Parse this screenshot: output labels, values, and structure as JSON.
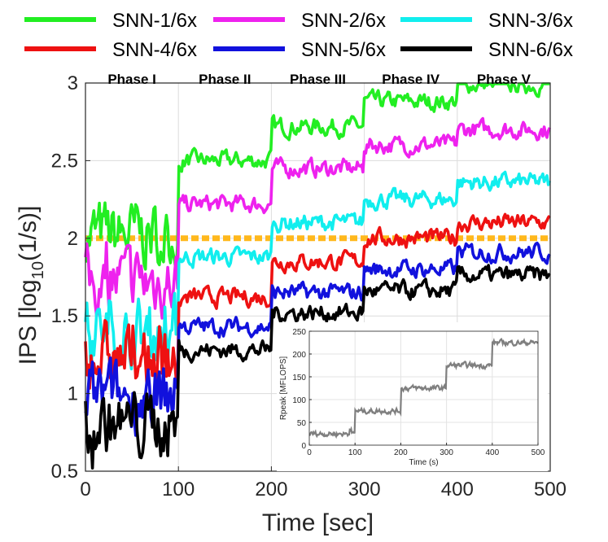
{
  "chart_data": [
    {
      "type": "line",
      "title": "",
      "xlabel": "Time [sec]",
      "ylabel": "IPS [log10(1/s)]",
      "ylabel_parts": {
        "prefix": "IPS [log",
        "sub": "10",
        "suffix": "(1/s)]"
      },
      "xlim": [
        0,
        500
      ],
      "ylim": [
        0.5,
        3.0
      ],
      "xticks": [
        0,
        100,
        200,
        300,
        400,
        500
      ],
      "yticks": [
        0.5,
        1,
        1.5,
        2,
        2.5,
        3
      ],
      "xtick_labels": [
        "0",
        "100",
        "200",
        "300",
        "400",
        "500"
      ],
      "ytick_labels": [
        "0.5",
        "1",
        "1.5",
        "2",
        "2.5",
        "3"
      ],
      "grid": true,
      "legend_position": "top-outside",
      "phase_labels": [
        "Phase I",
        "Phase II",
        "Phase III",
        "Phase IV",
        "Phase V"
      ],
      "phase_boundaries": [
        0,
        100,
        200,
        300,
        400,
        500
      ],
      "reference_line": {
        "y": 2.0,
        "color": "#FFB81C",
        "style": "dotted"
      },
      "series": [
        {
          "name": "SNN-1/6x",
          "color": "#22EE22",
          "phase_levels": [
            2.02,
            2.5,
            2.72,
            2.88,
            2.99
          ]
        },
        {
          "name": "SNN-2/6x",
          "color": "#EE22EE",
          "phase_levels": [
            1.72,
            2.22,
            2.45,
            2.6,
            2.7
          ]
        },
        {
          "name": "SNN-3/6x",
          "color": "#11EEEE",
          "phase_levels": [
            1.4,
            1.88,
            2.1,
            2.25,
            2.36
          ]
        },
        {
          "name": "SNN-4/6x",
          "color": "#EE1111",
          "phase_levels": [
            1.22,
            1.62,
            1.85,
            2.0,
            2.1
          ]
        },
        {
          "name": "SNN-5/6x",
          "color": "#1111DD",
          "phase_levels": [
            0.98,
            1.43,
            1.65,
            1.8,
            1.91
          ]
        },
        {
          "name": "SNN-6/6x",
          "color": "#000000",
          "phase_levels": [
            0.8,
            1.28,
            1.52,
            1.66,
            1.76
          ]
        }
      ]
    },
    {
      "type": "line",
      "title": "",
      "xlabel": "Time (s)",
      "ylabel": "Rpeak [MFLOPS]",
      "xlim": [
        0,
        500
      ],
      "ylim": [
        0,
        250
      ],
      "xticks": [
        0,
        100,
        200,
        300,
        400,
        500
      ],
      "yticks": [
        0,
        50,
        100,
        150,
        200,
        250
      ],
      "xtick_labels": [
        "0",
        "100",
        "200",
        "300",
        "400",
        "500"
      ],
      "ytick_labels": [
        "0",
        "50",
        "100",
        "150",
        "200",
        "250"
      ],
      "grid": true,
      "series": [
        {
          "name": "Rpeak",
          "color": "#7F7F7F",
          "phase_levels": [
            25,
            75,
            125,
            175,
            225
          ]
        }
      ]
    }
  ]
}
